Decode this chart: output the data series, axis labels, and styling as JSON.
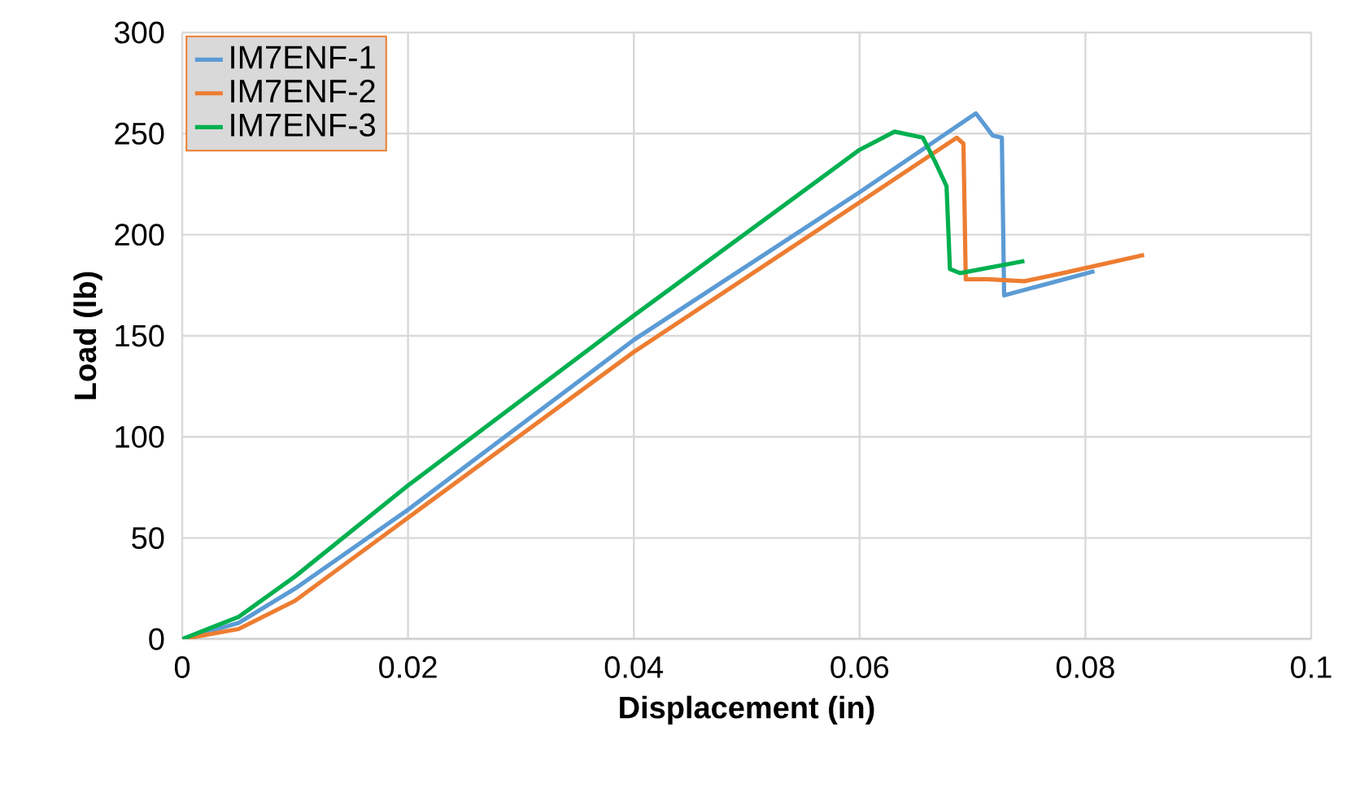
{
  "chart_data": {
    "type": "line",
    "xlabel": "Displacement (in)",
    "ylabel": "Load (lb)",
    "xlim": [
      0,
      0.1
    ],
    "xticks": [
      0,
      0.02,
      0.04,
      0.06,
      0.08,
      0.1
    ],
    "ylim": [
      0,
      300
    ],
    "yticks": [
      0,
      50,
      100,
      150,
      200,
      250,
      300
    ],
    "grid": true,
    "legend": "top left",
    "marker": "none",
    "line_style": "solid",
    "series": [
      {
        "name": "IM7ENF-1",
        "color": "#5b9bd5",
        "x": [
          0,
          0.005,
          0.01,
          0.02,
          0.04,
          0.06,
          0.0703,
          0.0718,
          0.0726,
          0.0728,
          0.0808
        ],
        "values": [
          0,
          8,
          25,
          64,
          148,
          221,
          260,
          249,
          248,
          170,
          182
        ]
      },
      {
        "name": "IM7ENF-2",
        "color": "#ed7d31",
        "x": [
          0,
          0.005,
          0.01,
          0.02,
          0.04,
          0.06,
          0.0686,
          0.0692,
          0.0694,
          0.0713,
          0.0746,
          0.078,
          0.0852
        ],
        "values": [
          0,
          5,
          19,
          60,
          142,
          216,
          248,
          245,
          178,
          178,
          177,
          181,
          190
        ]
      },
      {
        "name": "IM7ENF-3",
        "color": "#00b050",
        "x": [
          0,
          0.005,
          0.01,
          0.02,
          0.04,
          0.06,
          0.0631,
          0.0656,
          0.0667,
          0.0677,
          0.068,
          0.0689,
          0.0746
        ],
        "values": [
          0,
          11,
          31,
          76,
          160,
          242,
          251,
          248,
          236,
          224,
          183,
          181,
          187
        ]
      }
    ]
  }
}
